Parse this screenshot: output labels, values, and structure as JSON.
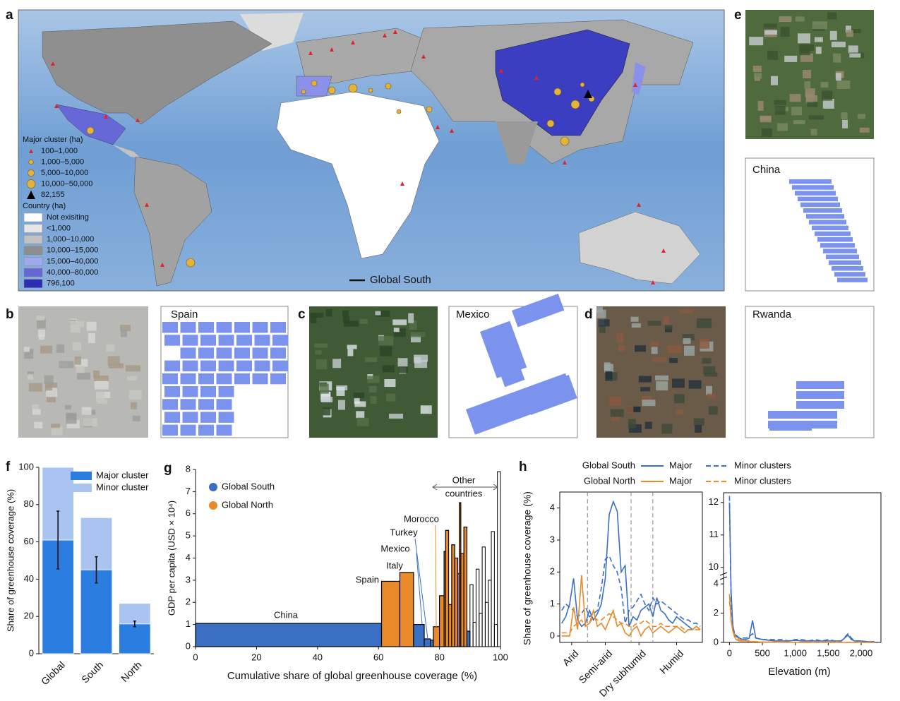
{
  "panel_labels": [
    "a",
    "b",
    "c",
    "d",
    "e",
    "f",
    "g",
    "h"
  ],
  "map": {
    "cluster_title": "Major cluster (ha)",
    "cluster_items": [
      "100–1,000",
      "1,000–5,000",
      "5,000–10,000",
      "10,000–50,000",
      "82,155"
    ],
    "country_title": "Country (ha)",
    "country_items": [
      "Not exisiting",
      "<1,000",
      "1,000–10,000",
      "10,000–15,000",
      "15,000–40,000",
      "40,000–80,000",
      "796,100"
    ],
    "country_colors": [
      "#ffffff",
      "#e6e6e6",
      "#c2c2c2",
      "#8e8e8e",
      "#9ea9ee",
      "#6468d2",
      "#2b2eb2"
    ],
    "line_label": "Global South"
  },
  "images": {
    "b": "Spain",
    "c": "Mexico",
    "d": "Rwanda",
    "e": "China"
  },
  "chart_data": [
    {
      "type": "bar",
      "stacked": true,
      "categories": [
        "Global",
        "South",
        "North"
      ],
      "series": [
        {
          "name": "Major cluster",
          "color": "#2b7de0",
          "values": [
            61,
            45,
            16
          ],
          "errors": [
            15.5,
            7,
            1.5
          ]
        },
        {
          "name": "Minor cluster",
          "color": "#a9c4f0",
          "values": [
            39,
            28,
            11
          ]
        }
      ],
      "ylabel": "Share of greenhouse coverage (%)",
      "ylim": [
        0,
        100
      ],
      "yticks": [
        0,
        20,
        40,
        60,
        80,
        100
      ],
      "legend": "upper right"
    },
    {
      "type": "histogram",
      "bins": [
        0,
        61,
        67,
        71.5,
        75,
        77,
        78,
        80,
        81.5,
        82,
        83,
        84,
        85,
        86,
        86.5,
        87,
        88,
        89,
        90,
        91,
        92,
        93,
        94,
        95,
        96,
        97,
        98,
        99,
        100
      ],
      "values": [
        1.05,
        2.95,
        3.35,
        1.0,
        0.35,
        0.3,
        0.9,
        2.3,
        4.3,
        5.25,
        1.9,
        4.6,
        4.0,
        3.3,
        6.5,
        4.2,
        5.4,
        0.7,
        2.8,
        1.1,
        3.5,
        1.5,
        4.5,
        2.0,
        3.0,
        5.2,
        1.0,
        7.9
      ],
      "colors": [
        "#3a6fc4",
        "#e8892a",
        "#e8892a",
        "#3a6fc4",
        "#3a6fc4",
        "#3a6fc4",
        "#e8892a",
        "#e8892a",
        "#e8892a",
        "#e8892a",
        "#e8892a",
        "#e8892a",
        "#e8892a",
        "#e8892a",
        "#e8892a",
        "#e8892a",
        "#e8892a",
        "#3a6fc4",
        "#000000",
        "#000000",
        "#000000",
        "#000000",
        "#000000",
        "#000000",
        "#000000",
        "#000000",
        "#000000",
        "#000000"
      ],
      "legend": [
        {
          "name": "Global South",
          "color": "#3a6fc4"
        },
        {
          "name": "Global North",
          "color": "#e8892a"
        }
      ],
      "annotations": [
        "China",
        "Spain",
        "Italy",
        "Mexico",
        "Turkey",
        "Morocco",
        "Other",
        "countries"
      ],
      "xlabel": "Cumulative share of global greenhouse coverage (%)",
      "ylabel": "GDP per capita (USD × 10⁴)",
      "xlim": [
        0,
        100
      ],
      "xticks": [
        0,
        20,
        40,
        60,
        80,
        100
      ],
      "ylim": [
        0,
        8
      ],
      "yticks": [
        0,
        1,
        2,
        3,
        4,
        5,
        6,
        7,
        8
      ]
    },
    {
      "type": "line",
      "x": [
        0,
        1,
        2,
        3,
        4,
        5,
        6,
        7,
        8,
        9,
        10,
        11,
        12,
        13,
        14,
        15,
        16,
        17,
        18,
        19,
        20,
        21,
        22,
        23,
        24,
        25,
        26,
        27,
        28,
        29,
        30,
        31,
        32,
        33,
        34,
        35
      ],
      "series": [
        {
          "group": "Global South",
          "name": "Major",
          "color": "#3a6fc4",
          "dashed": false,
          "values": [
            0.4,
            0.6,
            1.0,
            1.8,
            0.5,
            0.3,
            0.4,
            0.8,
            0.5,
            0.7,
            1.0,
            1.8,
            3.8,
            4.2,
            3.9,
            2.0,
            2.2,
            0.3,
            0.6,
            0.5,
            0.8,
            0.9,
            1.0,
            0.6,
            1.2,
            0.8,
            0.7,
            0.5,
            0.4,
            0.6,
            0.5,
            0.4,
            0.3,
            0.2,
            0.3,
            0.2
          ]
        },
        {
          "group": "Global South",
          "name": "Minor clusters",
          "color": "#3a6fc4",
          "dashed": true,
          "values": [
            0.8,
            1.0,
            0.9,
            0.8,
            0.6,
            0.7,
            0.9,
            0.6,
            0.7,
            0.8,
            1.5,
            2.4,
            2.5,
            2.2,
            2.0,
            1.5,
            0.4,
            0.8,
            0.9,
            1.1,
            1.3,
            1.0,
            0.8,
            1.2,
            1.0,
            1.1,
            1.0,
            0.9,
            0.8,
            0.7,
            0.6,
            0.5,
            0.5,
            0.4,
            0.4,
            0.3
          ]
        },
        {
          "group": "Global North",
          "name": "Major",
          "color": "#e8892a",
          "dashed": false,
          "values": [
            0.0,
            0.0,
            0.0,
            0.9,
            0.2,
            1.9,
            0.3,
            0.4,
            0.8,
            0.3,
            0.4,
            0.2,
            0.5,
            0.8,
            0.3,
            0.4,
            0.1,
            0.0,
            0.2,
            0.3,
            0.0,
            0.2,
            0.3,
            0.1,
            0.2,
            0.3,
            0.2,
            0.1,
            0.2,
            0.3,
            0.2,
            0.1,
            0.2,
            0.2,
            0.3,
            0.2
          ]
        },
        {
          "group": "Global North",
          "name": "Minor clusters",
          "color": "#e8892a",
          "dashed": true,
          "values": [
            0.1,
            0.1,
            0.1,
            0.3,
            0.4,
            0.5,
            0.3,
            0.4,
            0.6,
            0.5,
            0.5,
            0.6,
            0.7,
            0.6,
            0.5,
            0.4,
            0.4,
            0.3,
            0.3,
            0.4,
            0.4,
            0.5,
            0.4,
            0.3,
            0.3,
            0.4,
            0.3,
            0.3,
            0.3,
            0.3,
            0.3,
            0.2,
            0.2,
            0.2,
            0.2,
            0.2
          ]
        }
      ],
      "ylabel": "Share of greenhouse coverage (%)",
      "xlim": [
        -0.5,
        35.5
      ],
      "xticks": [
        {
          "value": 2.5,
          "label": "Arid"
        },
        {
          "value": 11,
          "label": "Semi-arid"
        },
        {
          "value": 19.5,
          "label": "Dry subhumid"
        },
        {
          "value": 29,
          "label": "Humid"
        }
      ],
      "dividers": [
        6.5,
        17.5,
        23
      ],
      "ylim": [
        -0.2,
        4.5
      ],
      "yticks": [
        0,
        1,
        2,
        3,
        4
      ]
    },
    {
      "type": "line",
      "x": [
        0,
        25,
        50,
        75,
        100,
        150,
        200,
        250,
        300,
        350,
        400,
        500,
        600,
        700,
        800,
        900,
        1000,
        1100,
        1200,
        1300,
        1400,
        1500,
        1600,
        1700,
        1800,
        1850,
        1900,
        2000,
        2100,
        2200
      ],
      "series": [
        {
          "color": "#3a6fc4",
          "dashed": false,
          "values": [
            12.0,
            3.5,
            1.2,
            0.6,
            0.4,
            0.3,
            0.2,
            0.2,
            0.3,
            1.5,
            0.3,
            0.2,
            0.15,
            0.1,
            0.1,
            0.1,
            0.15,
            0.1,
            0.1,
            0.1,
            0.1,
            0.1,
            0.1,
            0.1,
            0.5,
            0.2,
            0.1,
            0.1,
            0.05,
            0.05
          ]
        },
        {
          "color": "#3a6fc4",
          "dashed": true,
          "values": [
            12.2,
            2.8,
            1.0,
            0.7,
            0.5,
            0.3,
            0.3,
            0.3,
            0.4,
            0.6,
            0.3,
            0.2,
            0.2,
            0.2,
            0.2,
            0.1,
            0.2,
            0.2,
            0.1,
            0.2,
            0.1,
            0.2,
            0.1,
            0.1,
            0.6,
            0.3,
            0.1,
            0.1,
            0.05,
            0.05
          ]
        },
        {
          "color": "#e8892a",
          "dashed": false,
          "values": [
            3.3,
            1.5,
            0.8,
            0.4,
            0.2,
            0.1,
            0.1,
            0.1,
            0.05,
            0.05,
            0.05,
            0.02,
            0.02,
            0.02,
            0.01,
            0.01,
            0.01,
            0.01,
            0,
            0,
            0,
            0,
            0,
            0,
            0,
            0,
            0,
            0,
            0,
            0
          ]
        },
        {
          "color": "#e8892a",
          "dashed": true,
          "values": [
            2.8,
            1.6,
            0.9,
            0.5,
            0.3,
            0.2,
            0.15,
            0.1,
            0.1,
            0.05,
            0.05,
            0.03,
            0.03,
            0.02,
            0.02,
            0.01,
            0.01,
            0,
            0,
            0,
            0,
            0,
            0,
            0,
            0,
            0,
            0,
            0,
            0,
            0
          ]
        }
      ],
      "xlabel": "Elevation (m)",
      "xlim": [
        -90,
        2300
      ],
      "xticks": [
        0,
        500,
        {
          "value": 1000,
          "label": "1,000"
        },
        {
          "value": 1500,
          "label": "1,500"
        },
        {
          "value": 2000,
          "label": "2,000"
        }
      ],
      "ylim": [
        0,
        12.3
      ],
      "ybreak": [
        4.2,
        9.8
      ],
      "yticks": [
        0,
        2,
        4,
        10,
        11,
        12
      ]
    }
  ]
}
